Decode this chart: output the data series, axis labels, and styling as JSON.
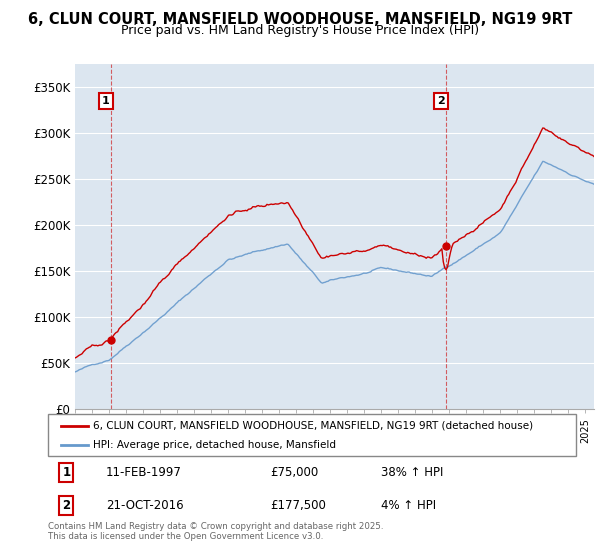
{
  "title_line1": "6, CLUN COURT, MANSFIELD WOODHOUSE, MANSFIELD, NG19 9RT",
  "title_line2": "Price paid vs. HM Land Registry's House Price Index (HPI)",
  "legend_label_red": "6, CLUN COURT, MANSFIELD WOODHOUSE, MANSFIELD, NG19 9RT (detached house)",
  "legend_label_blue": "HPI: Average price, detached house, Mansfield",
  "sale1_date": "11-FEB-1997",
  "sale1_price": "£75,000",
  "sale1_hpi": "38% ↑ HPI",
  "sale2_date": "21-OCT-2016",
  "sale2_price": "£177,500",
  "sale2_hpi": "4% ↑ HPI",
  "footer": "Contains HM Land Registry data © Crown copyright and database right 2025.\nThis data is licensed under the Open Government Licence v3.0.",
  "ylim_min": 0,
  "ylim_max": 375000,
  "yticks": [
    0,
    50000,
    100000,
    150000,
    200000,
    250000,
    300000,
    350000
  ],
  "ytick_labels": [
    "£0",
    "£50K",
    "£100K",
    "£150K",
    "£200K",
    "£250K",
    "£300K",
    "£350K"
  ],
  "red_color": "#cc0000",
  "blue_color": "#6699cc",
  "sale1_year": 1997.12,
  "sale1_value": 75000,
  "sale2_year": 2016.8,
  "sale2_value": 177500,
  "background_color": "#ffffff",
  "plot_bg_color": "#dce6f0",
  "grid_color": "#ffffff"
}
